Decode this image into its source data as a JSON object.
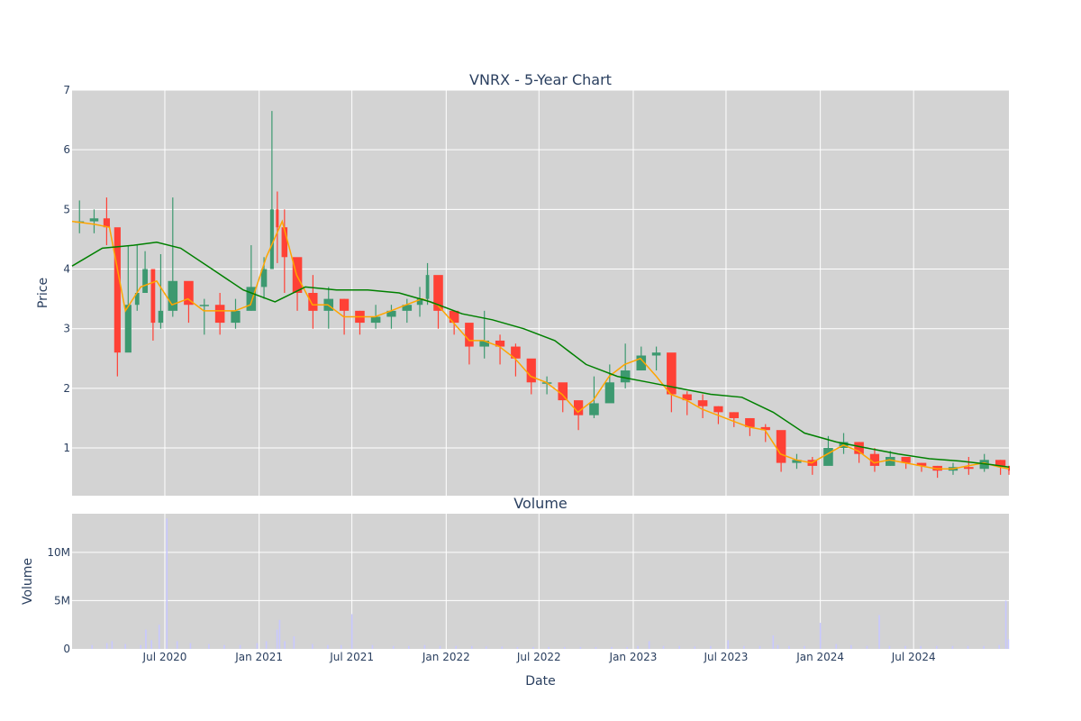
{
  "chart_data": [
    {
      "type": "candlestick",
      "title": "VNRX - 5-Year Chart",
      "ylabel": "Price",
      "ylim": [
        0.2,
        7.0
      ],
      "xlim": [
        "2020-01-02",
        "2025-01-03"
      ],
      "y_ticks": [
        1,
        2,
        3,
        4,
        5,
        6,
        7
      ],
      "grid": true,
      "colors": {
        "increasing": "#3d9970",
        "decreasing": "#ff4136",
        "ma_short": "#ffa500",
        "ma_long": "#008000",
        "background": "#d3d3d3",
        "grid": "#ffffff"
      },
      "series": [
        {
          "kind": "candlestick",
          "x": [
            "2020-01-02",
            "2020-01-31",
            "2020-02-28",
            "2020-03-20",
            "2020-04-10",
            "2020-05-01",
            "2020-05-15",
            "2020-06-01",
            "2020-06-15",
            "2020-07-01",
            "2020-08-01",
            "2020-09-01",
            "2020-10-01",
            "2020-11-01",
            "2020-12-01",
            "2021-01-01",
            "2021-01-20",
            "2021-02-01",
            "2021-02-10",
            "2021-03-01",
            "2021-04-01",
            "2021-05-01",
            "2021-06-01",
            "2021-07-01",
            "2021-08-01",
            "2021-09-01",
            "2021-10-01",
            "2021-11-01",
            "2021-11-20",
            "2021-12-01",
            "2022-01-01",
            "2022-02-01",
            "2022-03-01",
            "2022-04-01",
            "2022-05-01",
            "2022-06-01",
            "2022-07-01",
            "2022-08-01",
            "2022-09-01",
            "2022-10-01",
            "2022-11-01",
            "2022-12-01",
            "2023-01-01",
            "2023-02-01",
            "2023-03-01",
            "2023-04-01",
            "2023-05-01",
            "2023-06-01",
            "2023-07-01",
            "2023-08-01",
            "2023-09-01",
            "2023-10-01",
            "2023-11-01",
            "2023-12-01",
            "2024-01-01",
            "2024-02-01",
            "2024-03-01",
            "2024-04-01",
            "2024-05-01",
            "2024-06-01",
            "2024-07-01",
            "2024-08-01",
            "2024-09-01",
            "2024-10-01",
            "2024-11-01",
            "2024-12-01",
            "2025-01-03"
          ],
          "close": [
            4.8,
            4.85,
            4.7,
            2.6,
            3.4,
            3.6,
            4.0,
            3.1,
            3.3,
            3.8,
            3.4,
            3.4,
            3.1,
            3.3,
            3.7,
            4.0,
            5.0,
            4.7,
            4.2,
            3.6,
            3.3,
            3.5,
            3.3,
            3.1,
            3.2,
            3.3,
            3.4,
            3.5,
            3.9,
            3.3,
            3.1,
            2.7,
            2.8,
            2.7,
            2.5,
            2.1,
            2.1,
            1.8,
            1.55,
            1.75,
            2.1,
            2.3,
            2.55,
            2.6,
            1.9,
            1.8,
            1.7,
            1.6,
            1.5,
            1.35,
            1.3,
            0.75,
            0.8,
            0.7,
            1.0,
            1.1,
            0.9,
            0.7,
            0.85,
            0.75,
            0.7,
            0.62,
            0.68,
            0.65,
            0.8,
            0.7,
            0.62
          ],
          "high": [
            5.15,
            5.0,
            5.2,
            4.3,
            4.4,
            4.4,
            4.3,
            3.3,
            4.25,
            5.2,
            3.6,
            3.5,
            3.6,
            3.5,
            4.4,
            4.2,
            6.65,
            5.3,
            5.0,
            3.8,
            3.9,
            3.7,
            3.5,
            3.3,
            3.4,
            3.4,
            3.5,
            3.7,
            4.1,
            3.6,
            3.3,
            3.0,
            3.3,
            2.9,
            2.75,
            2.4,
            2.2,
            1.9,
            1.7,
            2.2,
            2.4,
            2.75,
            2.7,
            2.7,
            2.1,
            1.95,
            1.9,
            1.7,
            1.6,
            1.5,
            1.4,
            0.95,
            0.9,
            0.85,
            1.2,
            1.25,
            1.1,
            1.0,
            0.95,
            0.85,
            0.75,
            0.7,
            0.75,
            0.85,
            0.9,
            0.8,
            0.7
          ],
          "low": [
            4.6,
            4.6,
            4.4,
            2.2,
            3.0,
            3.3,
            3.6,
            2.8,
            3.0,
            3.2,
            3.1,
            2.9,
            2.9,
            3.0,
            3.3,
            3.5,
            4.5,
            4.1,
            3.6,
            3.3,
            3.0,
            3.0,
            2.9,
            2.9,
            3.0,
            3.0,
            3.1,
            3.2,
            3.4,
            3.0,
            2.9,
            2.4,
            2.5,
            2.4,
            2.2,
            1.9,
            1.9,
            1.6,
            1.3,
            1.5,
            1.8,
            2.0,
            2.3,
            2.3,
            1.6,
            1.55,
            1.5,
            1.4,
            1.35,
            1.2,
            1.1,
            0.6,
            0.65,
            0.55,
            0.8,
            0.9,
            0.75,
            0.6,
            0.7,
            0.65,
            0.6,
            0.5,
            0.55,
            0.55,
            0.6,
            0.55,
            0.55
          ]
        },
        {
          "kind": "line",
          "name": "",
          "color": "#ffa500",
          "x": [
            "2020-01-02",
            "2020-02-15",
            "2020-03-15",
            "2020-04-15",
            "2020-05-15",
            "2020-06-15",
            "2020-07-15",
            "2020-08-15",
            "2020-09-15",
            "2020-10-15",
            "2020-11-15",
            "2020-12-15",
            "2021-01-15",
            "2021-02-15",
            "2021-03-15",
            "2021-04-15",
            "2021-05-15",
            "2021-06-15",
            "2021-07-15",
            "2021-08-15",
            "2021-09-15",
            "2021-10-15",
            "2021-11-15",
            "2021-12-15",
            "2022-01-15",
            "2022-02-15",
            "2022-03-15",
            "2022-04-15",
            "2022-05-15",
            "2022-06-15",
            "2022-07-15",
            "2022-08-15",
            "2022-09-15",
            "2022-10-15",
            "2022-11-15",
            "2022-12-15",
            "2023-01-15",
            "2023-02-15",
            "2023-03-15",
            "2023-04-15",
            "2023-05-15",
            "2023-06-15",
            "2023-07-15",
            "2023-08-15",
            "2023-09-15",
            "2023-10-15",
            "2023-11-15",
            "2023-12-15",
            "2024-01-15",
            "2024-02-15",
            "2024-03-15",
            "2024-04-15",
            "2024-05-15",
            "2024-06-15",
            "2024-07-15",
            "2024-08-15",
            "2024-09-15",
            "2024-10-15",
            "2024-11-15",
            "2024-12-15",
            "2025-01-03"
          ],
          "y": [
            4.8,
            4.75,
            4.7,
            3.3,
            3.7,
            3.8,
            3.4,
            3.5,
            3.3,
            3.3,
            3.3,
            3.4,
            4.2,
            4.8,
            3.9,
            3.4,
            3.4,
            3.2,
            3.2,
            3.2,
            3.3,
            3.4,
            3.5,
            3.4,
            3.1,
            2.8,
            2.8,
            2.7,
            2.5,
            2.2,
            2.1,
            1.9,
            1.6,
            1.8,
            2.2,
            2.4,
            2.5,
            2.2,
            1.9,
            1.8,
            1.65,
            1.55,
            1.45,
            1.35,
            1.3,
            0.9,
            0.8,
            0.75,
            0.9,
            1.05,
            0.95,
            0.75,
            0.8,
            0.75,
            0.7,
            0.65,
            0.65,
            0.7,
            0.75,
            0.68,
            0.65
          ]
        },
        {
          "kind": "line",
          "name": "",
          "color": "#008000",
          "x": [
            "2020-01-02",
            "2020-03-01",
            "2020-05-01",
            "2020-06-15",
            "2020-08-01",
            "2020-10-01",
            "2020-12-01",
            "2021-02-01",
            "2021-04-01",
            "2021-06-01",
            "2021-08-01",
            "2021-10-01",
            "2021-12-01",
            "2022-02-01",
            "2022-04-01",
            "2022-06-01",
            "2022-08-01",
            "2022-10-01",
            "2022-12-01",
            "2023-02-01",
            "2023-04-01",
            "2023-06-01",
            "2023-08-01",
            "2023-10-01",
            "2023-12-01",
            "2024-02-01",
            "2024-04-01",
            "2024-06-01",
            "2024-08-01",
            "2024-10-01",
            "2024-12-01",
            "2025-01-03"
          ],
          "y": [
            4.05,
            4.35,
            4.4,
            4.45,
            4.35,
            4.0,
            3.65,
            3.45,
            3.7,
            3.65,
            3.65,
            3.6,
            3.45,
            3.25,
            3.15,
            3.0,
            2.8,
            2.4,
            2.2,
            2.1,
            2.0,
            1.9,
            1.85,
            1.6,
            1.25,
            1.1,
            1.0,
            0.9,
            0.82,
            0.78,
            0.72,
            0.68
          ]
        }
      ]
    },
    {
      "type": "bar",
      "title": "Volume",
      "ylabel": "Volume",
      "xlabel": "Date",
      "ylim": [
        0,
        14000000
      ],
      "y_ticks": [
        0,
        5000000,
        10000000
      ],
      "y_tick_labels": [
        "0",
        "5M",
        "10M"
      ],
      "x_ticks": [
        "2020-07-01",
        "2021-01-01",
        "2021-07-01",
        "2022-01-01",
        "2022-07-01",
        "2023-01-01",
        "2023-07-01",
        "2024-01-01",
        "2024-07-01"
      ],
      "x_tick_labels": [
        "Jul 2020",
        "Jan 2021",
        "Jul 2021",
        "Jan 2022",
        "Jul 2022",
        "Jan 2023",
        "Jul 2023",
        "Jan 2024",
        "Jul 2024"
      ],
      "color": "#c8c8ff",
      "x": [
        "2020-02-10",
        "2020-03-10",
        "2020-03-20",
        "2020-04-15",
        "2020-05-15",
        "2020-05-25",
        "2020-06-05",
        "2020-06-20",
        "2020-07-05",
        "2020-07-25",
        "2020-08-20",
        "2020-09-25",
        "2020-10-25",
        "2020-11-25",
        "2020-12-28",
        "2021-01-15",
        "2021-02-05",
        "2021-02-10",
        "2021-02-20",
        "2021-03-10",
        "2021-04-15",
        "2021-05-15",
        "2021-06-10",
        "2021-07-01",
        "2021-08-10",
        "2021-09-20",
        "2021-10-20",
        "2021-11-20",
        "2021-12-20",
        "2022-01-20",
        "2022-02-20",
        "2022-03-20",
        "2022-04-20",
        "2022-05-20",
        "2022-06-20",
        "2022-07-20",
        "2022-08-20",
        "2022-09-20",
        "2022-10-20",
        "2022-11-20",
        "2022-12-20",
        "2023-01-10",
        "2023-02-01",
        "2023-03-01",
        "2023-04-01",
        "2023-05-01",
        "2023-06-01",
        "2023-07-05",
        "2023-08-05",
        "2023-09-05",
        "2023-10-01",
        "2023-10-10",
        "2023-11-01",
        "2023-12-01",
        "2024-01-01",
        "2024-02-01",
        "2024-03-01",
        "2024-04-01",
        "2024-04-25",
        "2024-05-15",
        "2024-06-15",
        "2024-07-15",
        "2024-08-15",
        "2024-09-15",
        "2024-10-15",
        "2024-11-15",
        "2024-12-15",
        "2024-12-28",
        "2025-01-02"
      ],
      "values": [
        400000,
        600000,
        800000,
        500000,
        400000,
        2000000,
        900000,
        2500000,
        13500000,
        800000,
        600000,
        500000,
        400000,
        400000,
        600000,
        800000,
        2000000,
        3000000,
        800000,
        1300000,
        500000,
        400000,
        400000,
        3600000,
        400000,
        300000,
        300000,
        400000,
        300000,
        300000,
        300000,
        250000,
        250000,
        200000,
        200000,
        200000,
        200000,
        200000,
        200000,
        200000,
        200000,
        300000,
        800000,
        300000,
        300000,
        250000,
        300000,
        900000,
        300000,
        300000,
        1400000,
        400000,
        300000,
        300000,
        2700000,
        500000,
        400000,
        300000,
        3500000,
        300000,
        300000,
        300000,
        300000,
        300000,
        300000,
        300000,
        400000,
        5000000,
        1000000
      ]
    }
  ]
}
